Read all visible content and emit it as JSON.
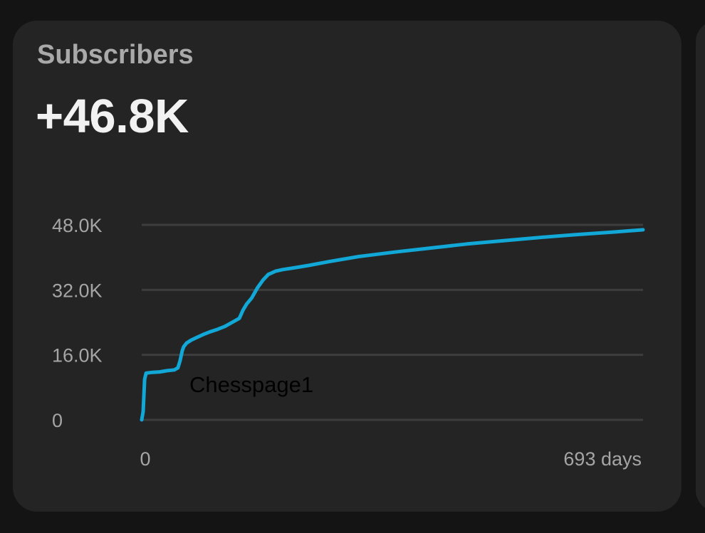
{
  "card": {
    "title": "Subscribers",
    "value": "+46.8K"
  },
  "colors": {
    "page_background": "#141414",
    "card_background": "#242424",
    "line": "#11a7d6",
    "grid": "#3d3d3d",
    "tick_text": "#a5a5a5",
    "annotation_text": "#000000"
  },
  "chart_data": {
    "type": "line",
    "title": "",
    "xlabel": "",
    "ylabel": "",
    "xlim": [
      0,
      693
    ],
    "ylim": [
      0,
      48000
    ],
    "grid": true,
    "x_tick_labels": [
      "0",
      "693 days"
    ],
    "y_ticks": [
      {
        "value": 0,
        "label": "0"
      },
      {
        "value": 16000,
        "label": "16.0K"
      },
      {
        "value": 32000,
        "label": "32.0K"
      },
      {
        "value": 48000,
        "label": "48.0K"
      }
    ],
    "annotation": {
      "text": "Chesspage1",
      "x": 66,
      "y": 9500
    },
    "series": [
      {
        "x": [
          0,
          2,
          4,
          6,
          10,
          15,
          25,
          35,
          45,
          50,
          53,
          56,
          58,
          62,
          68,
          75,
          85,
          95,
          105,
          115,
          125,
          135,
          140,
          145,
          152,
          160,
          168,
          175,
          180,
          185,
          195,
          210,
          230,
          260,
          300,
          350,
          400,
          450,
          500,
          550,
          600,
          650,
          693
        ],
        "y": [
          0,
          2000,
          10000,
          11500,
          11600,
          11700,
          11800,
          12100,
          12300,
          12800,
          14500,
          17000,
          18000,
          18900,
          19600,
          20200,
          21000,
          21700,
          22300,
          23000,
          24000,
          25000,
          27000,
          28500,
          30000,
          32500,
          34500,
          35800,
          36200,
          36600,
          37000,
          37400,
          38000,
          39000,
          40200,
          41300,
          42300,
          43300,
          44100,
          44900,
          45600,
          46200,
          46800
        ]
      }
    ]
  }
}
